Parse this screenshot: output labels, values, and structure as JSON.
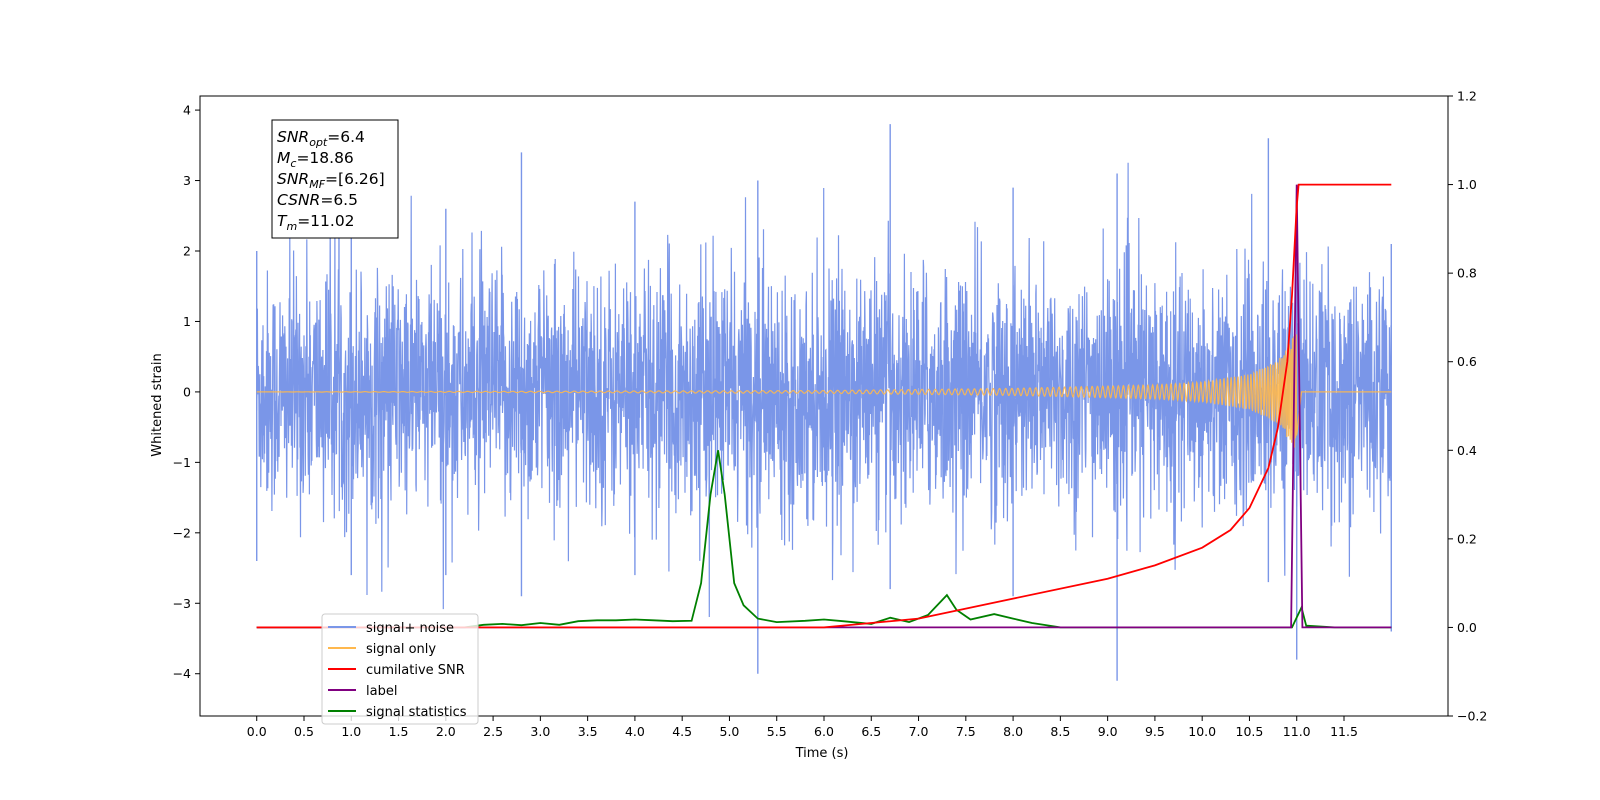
{
  "chart_data": {
    "type": "line",
    "xlabel": "Time (s)",
    "ylabel": "Whitened strain",
    "ylabel_right": "",
    "xlim": [
      -0.6,
      12.6
    ],
    "ylim": [
      -4.6,
      4.2
    ],
    "ylim_right": [
      -0.2,
      1.2
    ],
    "x_ticks": [
      "0.0",
      "0.5",
      "1.0",
      "1.5",
      "2.0",
      "2.5",
      "3.0",
      "3.5",
      "4.0",
      "4.5",
      "5.0",
      "5.5",
      "6.0",
      "6.5",
      "7.0",
      "7.5",
      "8.0",
      "8.5",
      "9.0",
      "9.5",
      "10.0",
      "10.5",
      "11.0",
      "11.5"
    ],
    "y_ticks": [
      "4",
      "3",
      "2",
      "1",
      "0",
      "−1",
      "−2",
      "−3",
      "−4"
    ],
    "y_ticks_right": [
      "1.2",
      "1.0",
      "0.8",
      "0.6",
      "0.4",
      "0.2",
      "0.0",
      "−0.2"
    ],
    "grid": false,
    "legend_position": "lower-left",
    "annotation": [
      {
        "base": "SNR",
        "sub": "opt",
        "value": "=6.4"
      },
      {
        "base": "M",
        "sub": "c",
        "value": "=18.86"
      },
      {
        "base": "SNR",
        "sub": "MF",
        "value": "=[6.26]"
      },
      {
        "base": "CSNR",
        "sub": "",
        "value": "=6.5"
      },
      {
        "base": "T",
        "sub": "m",
        "value": "=11.02"
      }
    ],
    "series": [
      {
        "name": "signal+ noise",
        "color": "#7a96e8",
        "axis": "left",
        "description": "whitened noise, std about 0.85, from 0.0 to 12.0 s",
        "x_range": [
          0.0,
          12.0
        ],
        "envelope": [
          [
            0.0,
            -2.4,
            2.0
          ],
          [
            1.0,
            -2.6,
            2.5
          ],
          [
            2.0,
            -2.6,
            2.6
          ],
          [
            2.8,
            -2.9,
            3.4
          ],
          [
            4.0,
            -2.6,
            2.7
          ],
          [
            5.3,
            -4.0,
            3.0
          ],
          [
            6.7,
            -2.8,
            3.8
          ],
          [
            8.0,
            -2.9,
            2.9
          ],
          [
            9.1,
            -4.1,
            3.1
          ],
          [
            10.7,
            -2.7,
            3.6
          ],
          [
            11.0,
            -3.8,
            2.9
          ],
          [
            12.0,
            -3.4,
            2.1
          ]
        ]
      },
      {
        "name": "signal only",
        "color": "#ffb84d",
        "axis": "left",
        "description": "chirp with growing amplitude, merger at T_m",
        "x": [
          0.0,
          6.0,
          8.0,
          9.5,
          10.0,
          10.5,
          10.8,
          11.0,
          11.05,
          12.0
        ],
        "amplitude": [
          0.0,
          0.02,
          0.05,
          0.1,
          0.14,
          0.25,
          0.45,
          0.85,
          0.0,
          0.0
        ]
      },
      {
        "name": "cumilative SNR",
        "color": "#ff0000",
        "axis": "right",
        "x": [
          0.0,
          6.0,
          7.0,
          8.0,
          9.0,
          9.5,
          10.0,
          10.3,
          10.5,
          10.7,
          10.8,
          10.9,
          10.95,
          11.0,
          11.02,
          12.0
        ],
        "values": [
          0.0,
          0.0,
          0.02,
          0.065,
          0.11,
          0.14,
          0.18,
          0.22,
          0.27,
          0.36,
          0.45,
          0.6,
          0.75,
          0.95,
          1.0,
          1.0
        ]
      },
      {
        "name": "label",
        "color": "#800080",
        "axis": "right",
        "x": [
          0.0,
          10.94,
          11.0,
          11.06,
          12.0
        ],
        "values": [
          0.0,
          0.0,
          1.0,
          0.0,
          0.0
        ]
      },
      {
        "name": "signal statistics",
        "color": "#008000",
        "axis": "right",
        "x": [
          0.0,
          2.2,
          2.4,
          2.6,
          2.8,
          3.0,
          3.2,
          3.4,
          3.6,
          3.8,
          4.0,
          4.2,
          4.4,
          4.6,
          4.7,
          4.8,
          4.88,
          4.95,
          5.05,
          5.15,
          5.3,
          5.5,
          5.8,
          6.0,
          6.2,
          6.5,
          6.7,
          6.9,
          7.1,
          7.3,
          7.4,
          7.55,
          7.8,
          8.0,
          8.2,
          8.5,
          9.0,
          10.0,
          10.5,
          10.95,
          11.05,
          11.1,
          11.4,
          12.0
        ],
        "values": [
          0.0,
          0.0,
          0.006,
          0.008,
          0.005,
          0.01,
          0.006,
          0.014,
          0.016,
          0.016,
          0.018,
          0.016,
          0.014,
          0.015,
          0.1,
          0.3,
          0.4,
          0.3,
          0.1,
          0.05,
          0.02,
          0.012,
          0.015,
          0.018,
          0.014,
          0.008,
          0.022,
          0.012,
          0.028,
          0.073,
          0.04,
          0.018,
          0.03,
          0.02,
          0.01,
          0.0,
          0.0,
          0.0,
          0.0,
          0.0,
          0.045,
          0.004,
          0.0,
          0.0
        ]
      }
    ]
  }
}
